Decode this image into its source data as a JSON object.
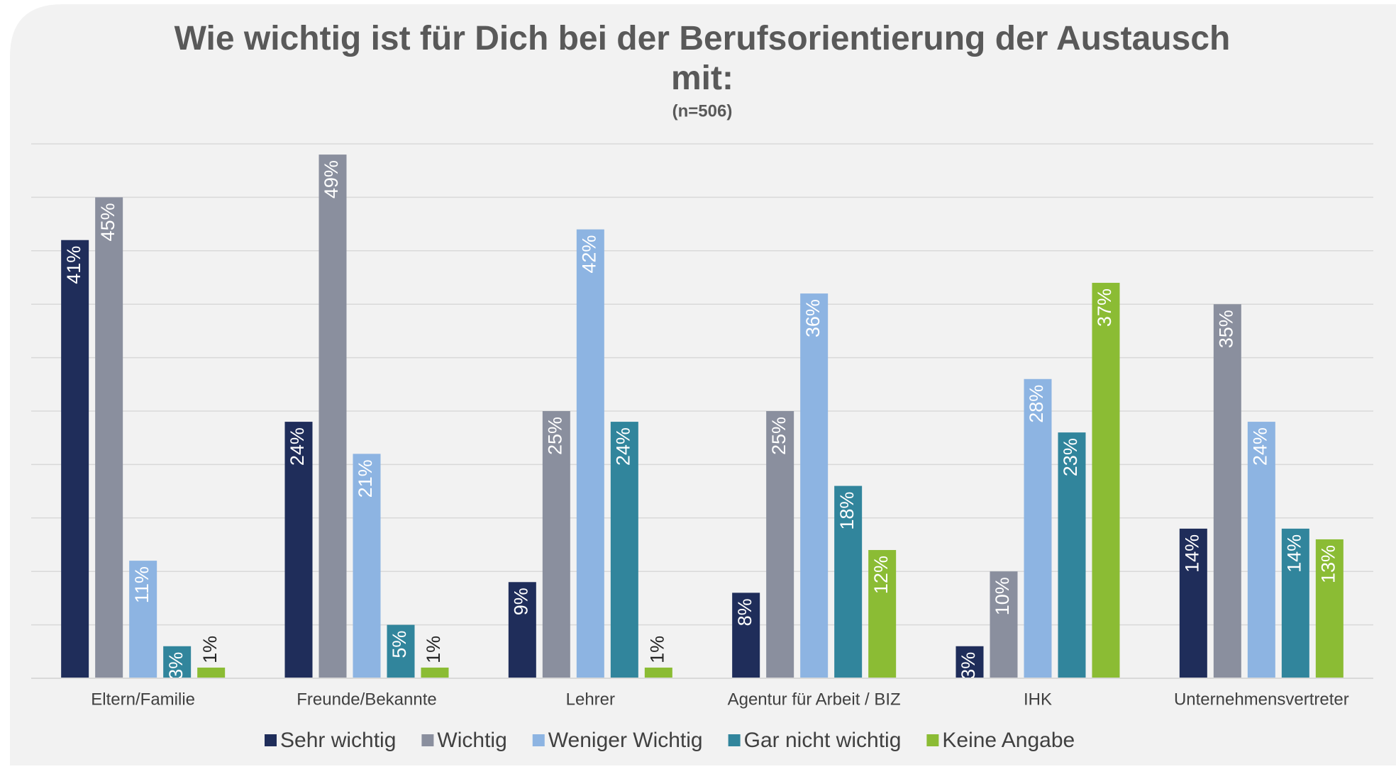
{
  "chart_data": {
    "type": "bar",
    "title": "Wie wichtig ist für Dich bei der Berufsorientierung der Austausch mit:",
    "subtitle": "(n=506)",
    "categories": [
      "Eltern/Familie",
      "Freunde/Bekannte",
      "Lehrer",
      "Agentur für Arbeit / BIZ",
      "IHK",
      "Unternehmensvertreter"
    ],
    "series": [
      {
        "name": "Sehr wichtig",
        "color": "#1f2d5a",
        "values": [
          41,
          24,
          9,
          8,
          3,
          14
        ],
        "value_labels": [
          "41%",
          "24%",
          "9%",
          "8%",
          "3%",
          "14%"
        ]
      },
      {
        "name": "Wichtig",
        "color": "#8a8f9e",
        "values": [
          45,
          49,
          25,
          25,
          10,
          35
        ],
        "value_labels": [
          "45%",
          "49%",
          "25%",
          "25%",
          "10%",
          "35%"
        ]
      },
      {
        "name": "Weniger Wichtig",
        "color": "#8db4e2",
        "values": [
          11,
          21,
          42,
          36,
          28,
          24
        ],
        "value_labels": [
          "11%",
          "21%",
          "42%",
          "36%",
          "28%",
          "24%"
        ]
      },
      {
        "name": "Gar nicht wichtig",
        "color": "#31859c",
        "values": [
          3,
          5,
          24,
          18,
          23,
          14
        ],
        "value_labels": [
          "3%",
          "5%",
          "24%",
          "18%",
          "23%",
          "14%"
        ]
      },
      {
        "name": "Keine Angabe",
        "color": "#8bbc34",
        "values": [
          1,
          1,
          1,
          12,
          37,
          13
        ],
        "value_labels": [
          "1%",
          "1%",
          "1%",
          "12%",
          "37%",
          "13%"
        ]
      }
    ],
    "ylim": [
      0,
      50
    ],
    "yticks": [
      0,
      5,
      10,
      15,
      20,
      25,
      30,
      35,
      40,
      45,
      50
    ],
    "grid": true,
    "legend": "bottom"
  }
}
